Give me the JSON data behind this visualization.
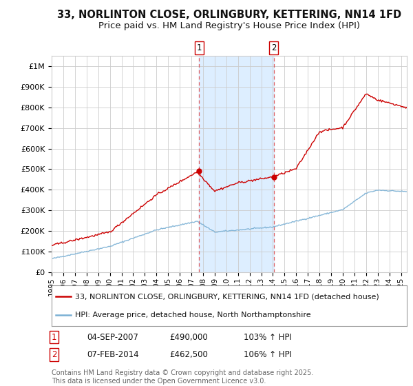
{
  "title_line1": "33, NORLINTON CLOSE, ORLINGBURY, KETTERING, NN14 1FD",
  "title_line2": "Price paid vs. HM Land Registry's House Price Index (HPI)",
  "ylim": [
    0,
    1050000
  ],
  "yticks": [
    0,
    100000,
    200000,
    300000,
    400000,
    500000,
    600000,
    700000,
    800000,
    900000,
    1000000
  ],
  "ytick_labels": [
    "£0",
    "£100K",
    "£200K",
    "£300K",
    "£400K",
    "£500K",
    "£600K",
    "£700K",
    "£800K",
    "£900K",
    "£1M"
  ],
  "xlim_start": 1995.0,
  "xlim_end": 2025.5,
  "event1_x": 2007.67,
  "event1_y": 490000,
  "event1_label": "1",
  "event1_date": "04-SEP-2007",
  "event1_price": "£490,000",
  "event1_hpi": "103% ↑ HPI",
  "event2_x": 2014.08,
  "event2_y": 462500,
  "event2_label": "2",
  "event2_date": "07-FEB-2014",
  "event2_price": "£462,500",
  "event2_hpi": "106% ↑ HPI",
  "line1_color": "#cc0000",
  "line2_color": "#7ab0d4",
  "shade_color": "#ddeeff",
  "grid_color": "#cccccc",
  "background_color": "#ffffff",
  "legend1_label": "33, NORLINTON CLOSE, ORLINGBURY, KETTERING, NN14 1FD (detached house)",
  "legend2_label": "HPI: Average price, detached house, North Northamptonshire",
  "footer_text": "Contains HM Land Registry data © Crown copyright and database right 2025.\nThis data is licensed under the Open Government Licence v3.0.",
  "title_fontsize": 10.5,
  "subtitle_fontsize": 9.5,
  "tick_fontsize": 8,
  "legend_fontsize": 8,
  "annot_fontsize": 8.5,
  "footer_fontsize": 7
}
